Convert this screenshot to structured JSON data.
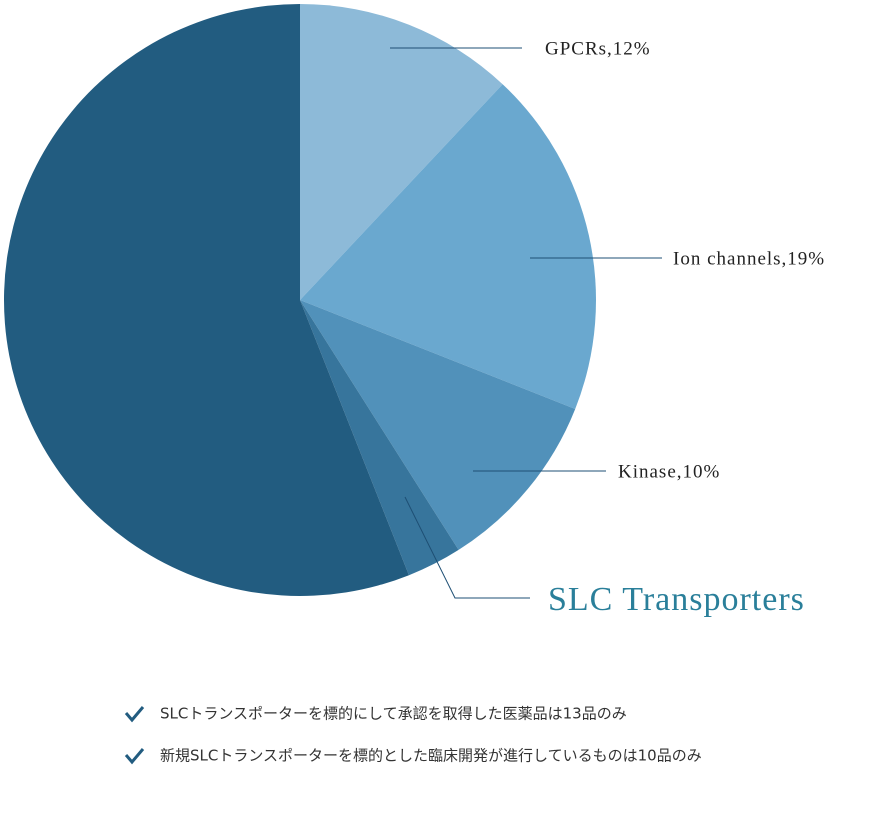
{
  "chart_data": {
    "type": "pie",
    "values": [
      12,
      19,
      10,
      3,
      56
    ],
    "labels": [
      "GPCRs,12%",
      "Ion channels,19%",
      "Kinase,10%",
      "SLC Transporters",
      null
    ],
    "colors": [
      "#8dbad8",
      "#6aa8cf",
      "#5191ba",
      "#37759c",
      "#225c80"
    ]
  },
  "notes": [
    "SLCトランスポーターを標的にして承認を取得した医薬品は13品のみ",
    "新規SLCトランスポーターを標的とした臨床開発が進行しているものは10品のみ"
  ]
}
